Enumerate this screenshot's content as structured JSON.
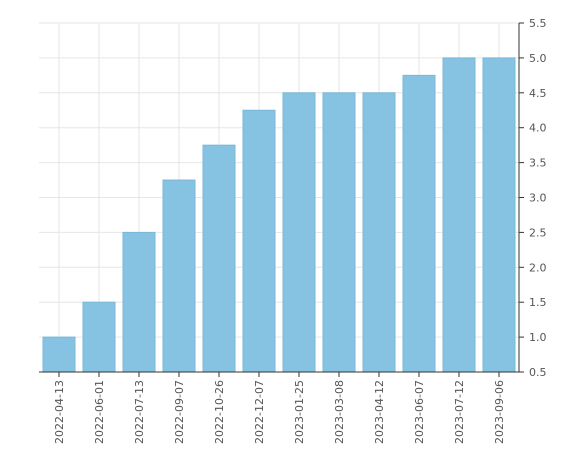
{
  "chart_data": {
    "type": "bar",
    "categories": [
      "2022-04-13",
      "2022-06-01",
      "2022-07-13",
      "2022-09-07",
      "2022-10-26",
      "2022-12-07",
      "2023-01-25",
      "2023-03-08",
      "2023-04-12",
      "2023-06-07",
      "2023-07-12",
      "2023-09-06"
    ],
    "values": [
      1.0,
      1.5,
      2.5,
      3.25,
      3.75,
      4.25,
      4.5,
      4.5,
      4.5,
      4.75,
      5.0,
      5.0
    ],
    "y_ticks": [
      "0.5",
      "1.0",
      "1.5",
      "2.0",
      "2.5",
      "3.0",
      "3.5",
      "4.0",
      "4.5",
      "5.0",
      "5.5"
    ],
    "ylim": [
      0.5,
      5.5
    ],
    "y_axis_side": "right",
    "grid": true,
    "title": "",
    "xlabel": "",
    "ylabel": "",
    "bar_color": "#86c3e2",
    "bar_edge_color": "#7ab8d8"
  }
}
